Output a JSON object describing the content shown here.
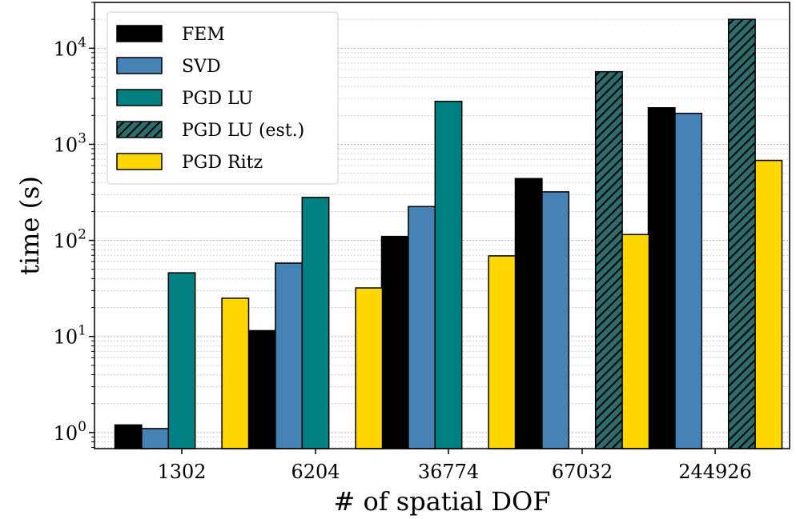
{
  "chart_data": {
    "type": "bar",
    "title": "",
    "xlabel": "# of spatial DOF",
    "ylabel": "time (s)",
    "yscale": "log",
    "ylim": [
      0.68,
      30000
    ],
    "grid": "horizontal, major and minor",
    "legend_position": "top-left",
    "categories": [
      "1302",
      "6204",
      "36774",
      "67032",
      "244926"
    ],
    "y_ticks": [
      {
        "value": 1,
        "base": "10",
        "exp": "0"
      },
      {
        "value": 10,
        "base": "10",
        "exp": "1"
      },
      {
        "value": 100,
        "base": "10",
        "exp": "2"
      },
      {
        "value": 1000,
        "base": "10",
        "exp": "3"
      },
      {
        "value": 10000,
        "base": "10",
        "exp": "4"
      }
    ],
    "series": [
      {
        "name": "FEM",
        "color": "#000000",
        "hatch": false,
        "values": [
          1.2,
          11.5,
          110,
          440,
          2400
        ]
      },
      {
        "name": "SVD",
        "color": "#4682b4",
        "hatch": false,
        "values": [
          1.1,
          58,
          225,
          320,
          2100
        ]
      },
      {
        "name": "PGD LU",
        "color": "#008080",
        "hatch": false,
        "values": [
          46,
          280,
          2800,
          null,
          null
        ]
      },
      {
        "name": "PGD LU (est.)",
        "color": "#2e6b6b",
        "hatch": true,
        "values": [
          null,
          null,
          null,
          5700,
          20000
        ]
      },
      {
        "name": "PGD Ritz",
        "color": "#ffd700",
        "hatch": false,
        "values": [
          25,
          32,
          69,
          115,
          680
        ]
      }
    ]
  }
}
